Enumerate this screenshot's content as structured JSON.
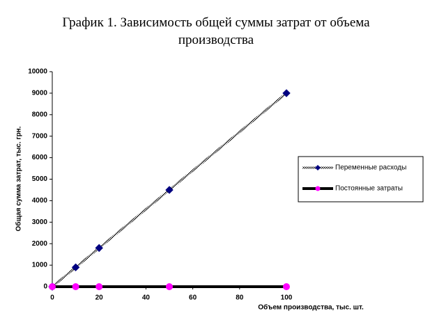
{
  "chart_data": {
    "type": "line",
    "title": "График 1. Зависимость общей суммы затрат от объема производства",
    "x_label": "Объем производства, тыс. шт.",
    "y_label": "Общая сумма затрат, тыс. грн.",
    "x": [
      0,
      10,
      20,
      50,
      100
    ],
    "series": [
      {
        "name": "Переменные расходы",
        "color": "#000080",
        "values": [
          0,
          900,
          1800,
          4500,
          9000
        ]
      },
      {
        "name": "Постоянные затраты",
        "color": "#ff00ff",
        "values": [
          0,
          0,
          0,
          0,
          0
        ]
      }
    ],
    "xlim": [
      0,
      100
    ],
    "xticks": [
      0,
      20,
      40,
      60,
      80,
      100
    ],
    "ylim": [
      0,
      10000
    ],
    "yticks": [
      0,
      1000,
      2000,
      3000,
      4000,
      5000,
      6000,
      7000,
      8000,
      9000,
      10000
    ],
    "legend": "right"
  }
}
